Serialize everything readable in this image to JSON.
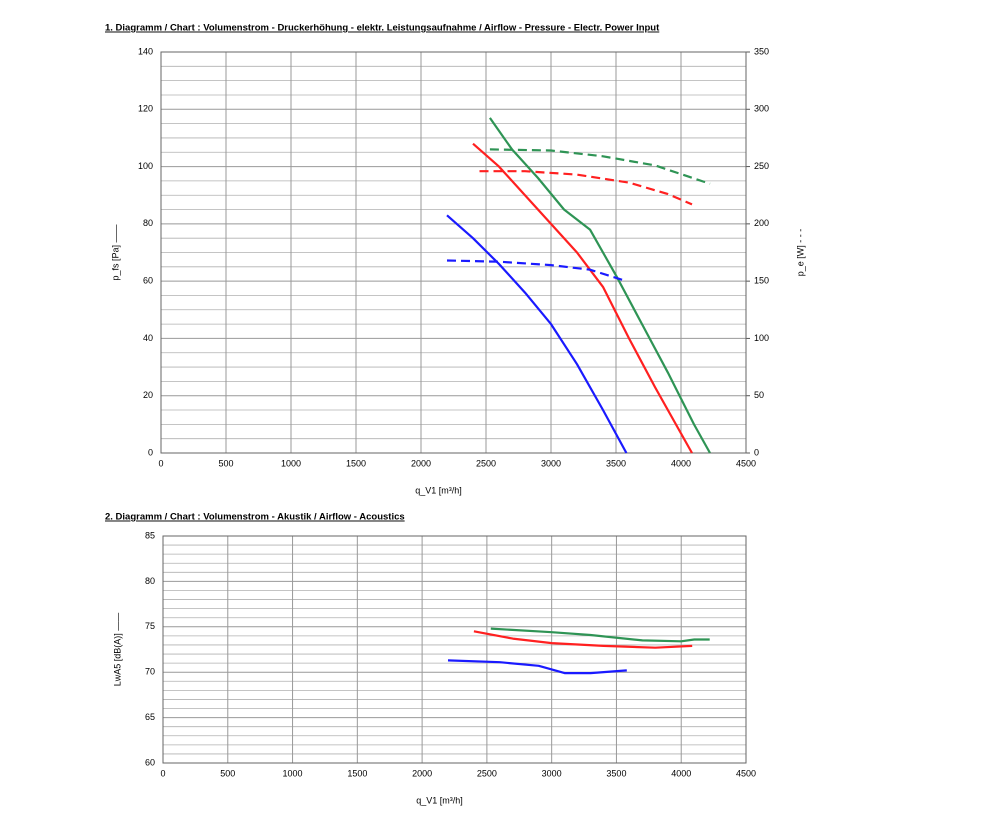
{
  "chart_data": [
    {
      "type": "line",
      "title": "1. Diagramm / Chart :   Volumenstrom - Druckerhöhung - elektr. Leistungsaufnahme / Airflow - Pressure - Electr. Power Input",
      "xlabel": "q_V1 [m³/h]",
      "ylabel": "p_fs [Pa]  ——",
      "y2label": "p_e [W]  - - -",
      "xlim": [
        0,
        4500
      ],
      "xticks": [
        0,
        500,
        1000,
        1500,
        2000,
        2500,
        3000,
        3500,
        4000,
        4500
      ],
      "ylim": [
        0,
        140
      ],
      "yticks": [
        0,
        20,
        40,
        60,
        80,
        100,
        120,
        140
      ],
      "y2lim": [
        0,
        350
      ],
      "y2ticks": [
        0,
        50,
        100,
        150,
        200,
        250,
        300,
        350
      ],
      "grid": true,
      "minor_grid_divisions": 4,
      "series": [
        {
          "color": "#1a1aff",
          "line_style": "solid",
          "x": [
            2200,
            2400,
            2600,
            2800,
            3000,
            3200,
            3400,
            3580
          ],
          "values": [
            83,
            75,
            66,
            56,
            45,
            31,
            15,
            0
          ]
        },
        {
          "color": "#ff2020",
          "line_style": "solid",
          "x": [
            2400,
            2600,
            2800,
            3000,
            3200,
            3400,
            3600,
            3800,
            4085
          ],
          "values": [
            108,
            100,
            90,
            80,
            70,
            58,
            40,
            23,
            0
          ]
        },
        {
          "color": "#2f9455",
          "line_style": "solid",
          "x": [
            2530,
            2700,
            2900,
            3100,
            3300,
            3500,
            3700,
            3900,
            4100,
            4223
          ],
          "values": [
            117,
            106,
            96,
            85,
            78,
            62,
            45,
            28,
            10,
            0
          ]
        },
        {
          "color": "#1a1aff",
          "line_style": "dashed",
          "axis": "y2",
          "x": [
            2200,
            2600,
            3000,
            3300,
            3580
          ],
          "values": [
            168,
            167,
            164,
            160,
            150
          ]
        },
        {
          "color": "#ff2020",
          "line_style": "dashed",
          "axis": "y2",
          "x": [
            2450,
            2800,
            3200,
            3600,
            3900,
            4085
          ],
          "values": [
            246,
            246,
            243,
            236,
            226,
            217
          ]
        },
        {
          "color": "#2f9455",
          "line_style": "dashed",
          "axis": "y2",
          "x": [
            2530,
            3000,
            3400,
            3800,
            4223
          ],
          "values": [
            265,
            264,
            259,
            251,
            235
          ]
        }
      ]
    },
    {
      "type": "line",
      "title": "2. Diagramm / Chart :   Volumenstrom - Akustik / Airflow - Acoustics",
      "xlabel": "q_V1 [m³/h]",
      "ylabel": "LwA5 [dB(A)]  ——",
      "xlim": [
        0,
        4500
      ],
      "xticks": [
        0,
        500,
        1000,
        1500,
        2000,
        2500,
        3000,
        3500,
        4000,
        4500
      ],
      "ylim": [
        60,
        85
      ],
      "yticks": [
        60,
        65,
        70,
        75,
        80,
        85
      ],
      "grid": true,
      "minor_grid_divisions": 5,
      "series": [
        {
          "color": "#1a1aff",
          "line_style": "solid",
          "x": [
            2200,
            2600,
            2900,
            3100,
            3300,
            3580
          ],
          "values": [
            71.3,
            71.1,
            70.7,
            69.9,
            69.9,
            70.2
          ]
        },
        {
          "color": "#ff2020",
          "line_style": "solid",
          "x": [
            2400,
            2700,
            3000,
            3400,
            3800,
            4085
          ],
          "values": [
            74.5,
            73.7,
            73.2,
            72.9,
            72.7,
            72.9
          ]
        },
        {
          "color": "#2f9455",
          "line_style": "solid",
          "x": [
            2530,
            3000,
            3300,
            3700,
            4000,
            4100,
            4220
          ],
          "values": [
            74.8,
            74.4,
            74.1,
            73.5,
            73.4,
            73.6,
            73.6
          ]
        }
      ]
    }
  ]
}
